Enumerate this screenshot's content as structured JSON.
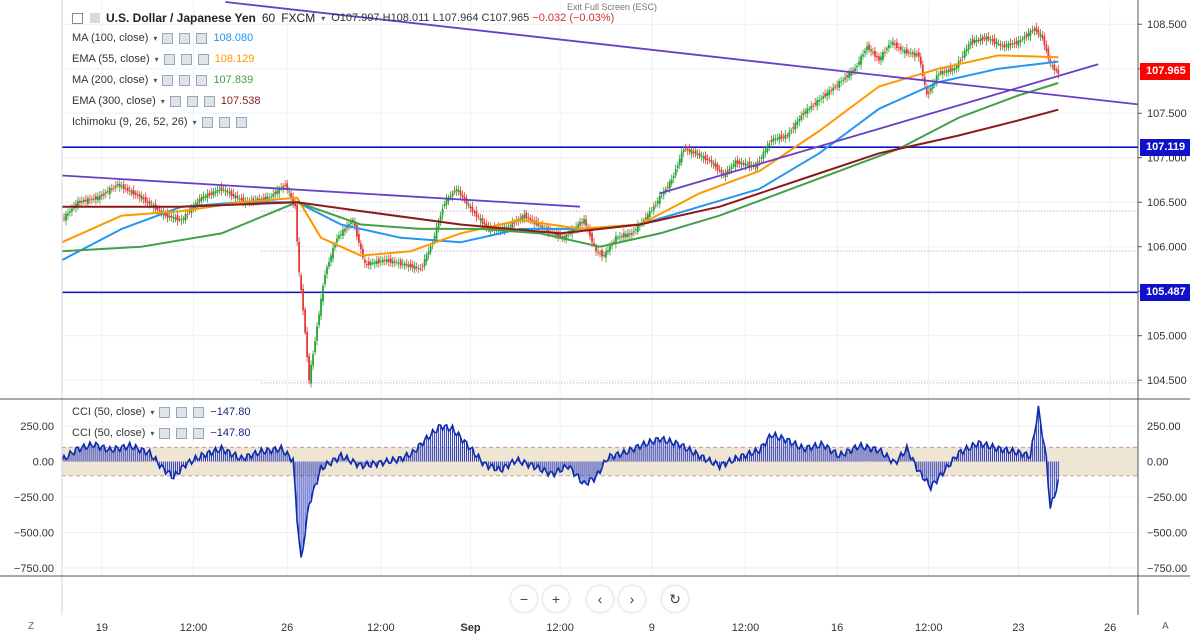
{
  "header": {
    "symbol": "U.S. Dollar / Japanese Yen",
    "interval": "60",
    "source": "FXCM",
    "ohlc": {
      "open": "O107.997",
      "high": "H108.011",
      "low": "L107.964",
      "close": "C107.965",
      "change": "−0.032 (−0.03%)"
    },
    "exit_fullscreen": "Exit Full Screen (ESC)"
  },
  "legend": [
    {
      "label": "MA (100, close)",
      "value": "108.080",
      "color": "#2196f3"
    },
    {
      "label": "EMA (55, close)",
      "value": "108.129",
      "color": "#ff9800"
    },
    {
      "label": "MA (200, close)",
      "value": "107.839",
      "color": "#43a047"
    },
    {
      "label": "EMA (300, close)",
      "value": "107.538",
      "color": "#8b1a1a"
    },
    {
      "label": "Ichimoku (9, 26, 52, 26)",
      "value": "",
      "color": "#777777"
    }
  ],
  "cci_legend": [
    {
      "label": "CCI (50, close)",
      "value": "−147.80",
      "color": "#1a237e"
    },
    {
      "label": "CCI (50, close)",
      "value": "−147.80",
      "color": "#1a237e"
    }
  ],
  "price_tags": [
    {
      "label": "107.965",
      "value": 107.965,
      "color": "#ff0000"
    },
    {
      "label": "107.119",
      "value": 107.119,
      "color": "#1111cc"
    },
    {
      "label": "105.487",
      "value": 105.487,
      "color": "#1111cc"
    }
  ],
  "nav_icons": [
    "minus-icon",
    "plus-icon",
    "chevron-left-icon",
    "chevron-right-icon",
    "reset-icon"
  ],
  "corner_left": "Z",
  "corner_right": "A",
  "chart_data": [
    {
      "type": "candlestick",
      "title": "U.S. Dollar / Japanese Yen · 60 · FXCM",
      "ylim": [
        104.3,
        108.75
      ],
      "y_ticks": [
        "108.500",
        "108.000",
        "107.500",
        "107.000",
        "106.500",
        "106.000",
        "105.500",
        "105.000",
        "104.500"
      ],
      "y_tick_values": [
        108.5,
        108.0,
        107.5,
        107.0,
        106.5,
        106.0,
        105.5,
        105.0,
        104.5
      ],
      "x_ticks": [
        "19",
        "12:00",
        "26",
        "12:00",
        "Sep",
        "12:00",
        "9",
        "12:00",
        "16",
        "12:00",
        "23",
        "26"
      ],
      "horizontal_lines": [
        107.119,
        105.487
      ],
      "dotted_levels": [
        106.4,
        105.95,
        104.47
      ],
      "price_path": [
        [
          0,
          106.3
        ],
        [
          8,
          106.5
        ],
        [
          18,
          106.55
        ],
        [
          28,
          106.7
        ],
        [
          40,
          106.55
        ],
        [
          52,
          106.35
        ],
        [
          60,
          106.3
        ],
        [
          70,
          106.55
        ],
        [
          80,
          106.65
        ],
        [
          92,
          106.5
        ],
        [
          104,
          106.55
        ],
        [
          112,
          106.7
        ],
        [
          117,
          106.45
        ],
        [
          119,
          105.7
        ],
        [
          121,
          105.3
        ],
        [
          124,
          104.5
        ],
        [
          128,
          105.1
        ],
        [
          132,
          105.7
        ],
        [
          138,
          106.1
        ],
        [
          146,
          106.3
        ],
        [
          152,
          105.8
        ],
        [
          162,
          105.85
        ],
        [
          172,
          105.8
        ],
        [
          180,
          105.75
        ],
        [
          186,
          106.05
        ],
        [
          192,
          106.5
        ],
        [
          198,
          106.65
        ],
        [
          206,
          106.4
        ],
        [
          214,
          106.2
        ],
        [
          222,
          106.2
        ],
        [
          232,
          106.35
        ],
        [
          242,
          106.2
        ],
        [
          252,
          106.1
        ],
        [
          262,
          106.3
        ],
        [
          268,
          105.95
        ],
        [
          272,
          105.9
        ],
        [
          278,
          106.1
        ],
        [
          286,
          106.15
        ],
        [
          294,
          106.35
        ],
        [
          300,
          106.55
        ],
        [
          306,
          106.75
        ],
        [
          312,
          107.1
        ],
        [
          318,
          107.05
        ],
        [
          326,
          106.95
        ],
        [
          332,
          106.8
        ],
        [
          338,
          106.95
        ],
        [
          348,
          106.9
        ],
        [
          356,
          107.2
        ],
        [
          364,
          107.25
        ],
        [
          372,
          107.5
        ],
        [
          380,
          107.65
        ],
        [
          388,
          107.8
        ],
        [
          398,
          108.0
        ],
        [
          404,
          108.25
        ],
        [
          410,
          108.1
        ],
        [
          416,
          108.3
        ],
        [
          422,
          108.2
        ],
        [
          430,
          108.15
        ],
        [
          434,
          107.7
        ],
        [
          440,
          107.95
        ],
        [
          448,
          108.0
        ],
        [
          456,
          108.3
        ],
        [
          464,
          108.35
        ],
        [
          472,
          108.25
        ],
        [
          480,
          108.3
        ],
        [
          488,
          108.45
        ],
        [
          492,
          108.35
        ],
        [
          496,
          108.05
        ],
        [
          500,
          107.95
        ]
      ],
      "series": [
        {
          "name": "MA (100, close)",
          "values": [
            [
              0,
              105.85
            ],
            [
              30,
              106.2
            ],
            [
              60,
              106.45
            ],
            [
              90,
              106.5
            ],
            [
              118,
              106.5
            ],
            [
              140,
              106.25
            ],
            [
              170,
              106.1
            ],
            [
              200,
              106.05
            ],
            [
              230,
              106.2
            ],
            [
              260,
              106.2
            ],
            [
              290,
              106.25
            ],
            [
              320,
              106.45
            ],
            [
              350,
              106.65
            ],
            [
              380,
              107.05
            ],
            [
              410,
              107.55
            ],
            [
              440,
              107.85
            ],
            [
              470,
              108.0
            ],
            [
              500,
              108.08
            ]
          ]
        },
        {
          "name": "EMA (55, close)",
          "values": [
            [
              0,
              106.05
            ],
            [
              30,
              106.35
            ],
            [
              60,
              106.4
            ],
            [
              90,
              106.5
            ],
            [
              118,
              106.55
            ],
            [
              130,
              106.1
            ],
            [
              150,
              105.9
            ],
            [
              175,
              105.95
            ],
            [
              200,
              106.15
            ],
            [
              230,
              106.3
            ],
            [
              260,
              106.2
            ],
            [
              290,
              106.25
            ],
            [
              320,
              106.6
            ],
            [
              350,
              106.85
            ],
            [
              380,
              107.3
            ],
            [
              410,
              107.8
            ],
            [
              440,
              108.0
            ],
            [
              470,
              108.15
            ],
            [
              500,
              108.13
            ]
          ]
        },
        {
          "name": "MA (200, close)",
          "values": [
            [
              0,
              105.95
            ],
            [
              40,
              106.0
            ],
            [
              80,
              106.15
            ],
            [
              118,
              106.5
            ],
            [
              150,
              106.25
            ],
            [
              180,
              106.2
            ],
            [
              210,
              106.2
            ],
            [
              240,
              106.15
            ],
            [
              270,
              106.0
            ],
            [
              300,
              106.15
            ],
            [
              330,
              106.35
            ],
            [
              360,
              106.6
            ],
            [
              390,
              106.85
            ],
            [
              420,
              107.1
            ],
            [
              450,
              107.45
            ],
            [
              480,
              107.7
            ],
            [
              500,
              107.84
            ]
          ]
        },
        {
          "name": "EMA (300, close)",
          "values": [
            [
              0,
              106.45
            ],
            [
              60,
              106.45
            ],
            [
              118,
              106.5
            ],
            [
              150,
              106.4
            ],
            [
              200,
              106.25
            ],
            [
              250,
              106.15
            ],
            [
              290,
              106.25
            ],
            [
              330,
              106.45
            ],
            [
              370,
              106.75
            ],
            [
              410,
              107.05
            ],
            [
              450,
              107.25
            ],
            [
              480,
              107.42
            ],
            [
              500,
              107.54
            ]
          ]
        }
      ],
      "trendlines": [
        {
          "name": "upper falling",
          "points": [
            [
              82,
              108.75
            ],
            [
              540,
              107.6
            ]
          ]
        },
        {
          "name": "lower falling",
          "points": [
            [
              0,
              106.8
            ],
            [
              260,
              106.45
            ]
          ]
        },
        {
          "name": "rising",
          "points": [
            [
              300,
              106.6
            ],
            [
              520,
              108.05
            ]
          ]
        }
      ]
    },
    {
      "type": "area",
      "title": "CCI (50, close)",
      "ylim": [
        -800,
        420
      ],
      "y_ticks": [
        "250.00",
        "0.00",
        "−250.00",
        "−500.00",
        "−750.00"
      ],
      "y_tick_values": [
        250,
        0,
        -250,
        -500,
        -750
      ],
      "band": [
        -100,
        100
      ],
      "values": [
        [
          0,
          10
        ],
        [
          8,
          90
        ],
        [
          16,
          120
        ],
        [
          24,
          80
        ],
        [
          34,
          110
        ],
        [
          44,
          60
        ],
        [
          50,
          -40
        ],
        [
          56,
          -110
        ],
        [
          62,
          -20
        ],
        [
          70,
          40
        ],
        [
          80,
          90
        ],
        [
          90,
          20
        ],
        [
          100,
          70
        ],
        [
          110,
          90
        ],
        [
          116,
          10
        ],
        [
          118,
          -400
        ],
        [
          120,
          -700
        ],
        [
          124,
          -300
        ],
        [
          130,
          -50
        ],
        [
          140,
          40
        ],
        [
          150,
          -30
        ],
        [
          160,
          -10
        ],
        [
          170,
          20
        ],
        [
          176,
          60
        ],
        [
          182,
          150
        ],
        [
          190,
          250
        ],
        [
          196,
          230
        ],
        [
          202,
          140
        ],
        [
          212,
          -20
        ],
        [
          220,
          -60
        ],
        [
          228,
          10
        ],
        [
          238,
          -40
        ],
        [
          246,
          -90
        ],
        [
          254,
          -30
        ],
        [
          262,
          -160
        ],
        [
          268,
          -110
        ],
        [
          274,
          30
        ],
        [
          282,
          60
        ],
        [
          290,
          110
        ],
        [
          300,
          160
        ],
        [
          310,
          120
        ],
        [
          320,
          40
        ],
        [
          330,
          -30
        ],
        [
          340,
          30
        ],
        [
          350,
          80
        ],
        [
          356,
          190
        ],
        [
          364,
          150
        ],
        [
          372,
          90
        ],
        [
          382,
          120
        ],
        [
          390,
          40
        ],
        [
          400,
          110
        ],
        [
          410,
          80
        ],
        [
          418,
          -10
        ],
        [
          424,
          90
        ],
        [
          430,
          -70
        ],
        [
          436,
          -180
        ],
        [
          442,
          -80
        ],
        [
          450,
          60
        ],
        [
          460,
          130
        ],
        [
          470,
          90
        ],
        [
          478,
          70
        ],
        [
          486,
          40
        ],
        [
          490,
          370
        ],
        [
          494,
          20
        ],
        [
          496,
          -330
        ],
        [
          500,
          -148
        ]
      ]
    }
  ]
}
